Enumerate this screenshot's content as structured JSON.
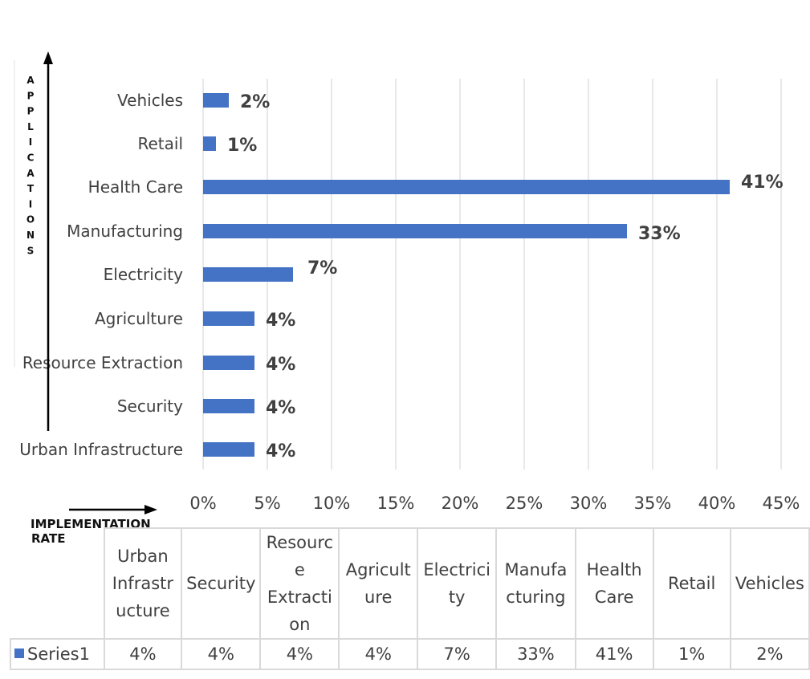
{
  "chart_data": {
    "type": "bar",
    "orientation": "horizontal",
    "categories": [
      "Urban Infrastructure",
      "Security",
      "Resource Extraction",
      "Agriculture",
      "Electricity",
      "Manufacturing",
      "Health Care",
      "Retail",
      "Vehicles"
    ],
    "series": [
      {
        "name": "Series1",
        "values": [
          4,
          4,
          4,
          4,
          7,
          33,
          41,
          1,
          2
        ]
      }
    ],
    "data_labels": [
      "4%",
      "4%",
      "4%",
      "4%",
      "7%",
      "33%",
      "41%",
      "1%",
      "2%"
    ],
    "x_ticks": [
      "0%",
      "5%",
      "10%",
      "15%",
      "20%",
      "25%",
      "30%",
      "35%",
      "40%",
      "45%"
    ],
    "xlim": [
      0,
      45
    ],
    "grid": "vertical",
    "bar_color": "#4472c4",
    "y_axis_annotation": "APPLICATIONS",
    "x_axis_annotation": "IMPLEMENTATION RATE",
    "data_table": {
      "headers": [
        "Urban Infrastr ucture",
        "Security",
        "Resourc e Extracti on",
        "Agricult ure",
        "Electrici ty",
        "Manufa cturing",
        "Health Care",
        "Retail",
        "Vehicles"
      ],
      "row_name": "Series1",
      "values": [
        "4%",
        "4%",
        "4%",
        "4%",
        "7%",
        "33%",
        "41%",
        "1%",
        "2%"
      ]
    }
  }
}
